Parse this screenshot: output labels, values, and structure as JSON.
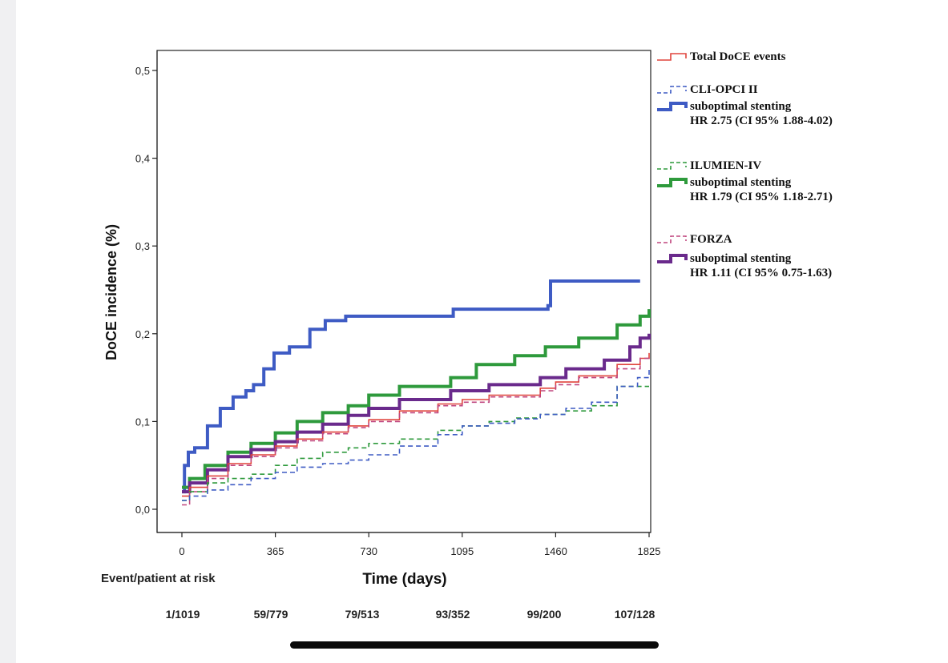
{
  "chart_data": {
    "type": "line",
    "subtype": "kaplan-meier step curves",
    "xlabel": "Time (days)",
    "ylabel": "DoCE incidence (%)",
    "xlim": [
      0,
      1825
    ],
    "ylim": [
      0,
      0.5
    ],
    "x_ticks": [
      0,
      365,
      730,
      1095,
      1460,
      1825
    ],
    "y_ticks": [
      0.0,
      0.1,
      0.2,
      0.3,
      0.4,
      0.5
    ],
    "y_tick_labels": [
      "0,0",
      "0,1",
      "0,2",
      "0,3",
      "0,4",
      "0,5"
    ],
    "grid": false,
    "legend_position": "right",
    "legend": [
      {
        "key": "total",
        "lines": [
          "Total DoCE events"
        ],
        "color": "#e0443c",
        "dashed": false,
        "thick": false
      },
      {
        "key": "cli_dashed",
        "lines": [
          "CLI-OPCI II"
        ],
        "color": "#3e5bc4",
        "dashed": true,
        "thick": false
      },
      {
        "key": "cli_solid",
        "lines": [
          "suboptimal stenting",
          "HR 2.75  (CI 95% 1.88-4.02)"
        ],
        "color": "#3e5bc4",
        "dashed": false,
        "thick": true
      },
      {
        "key": "ilu_dashed",
        "lines": [
          "ILUMIEN-IV"
        ],
        "color": "#2e9a3c",
        "dashed": true,
        "thick": false
      },
      {
        "key": "ilu_solid",
        "lines": [
          "suboptimal stenting",
          "HR 1.79 (CI 95% 1.18-2.71)"
        ],
        "color": "#2e9a3c",
        "dashed": false,
        "thick": true
      },
      {
        "key": "forza_dashed",
        "lines": [
          "FORZA"
        ],
        "color": "#c0467f",
        "dashed": true,
        "thick": false
      },
      {
        "key": "forza_solid",
        "lines": [
          "suboptimal stenting",
          "HR 1.11 (CI 95% 0.75-1.63)"
        ],
        "color": "#6a2a8c",
        "dashed": false,
        "thick": true
      }
    ],
    "series": [
      {
        "key": "cli_solid",
        "color": "#3e5bc4",
        "dashed": false,
        "width": 4,
        "x": [
          0,
          10,
          25,
          50,
          100,
          150,
          200,
          250,
          280,
          320,
          360,
          420,
          500,
          560,
          640,
          1060,
          1430,
          1440,
          1790
        ],
        "y": [
          0.02,
          0.05,
          0.065,
          0.07,
          0.095,
          0.115,
          0.128,
          0.135,
          0.142,
          0.16,
          0.178,
          0.185,
          0.205,
          0.215,
          0.22,
          0.228,
          0.232,
          0.26,
          0.26
        ]
      },
      {
        "key": "ilu_solid",
        "color": "#2e9a3c",
        "dashed": false,
        "width": 4,
        "x": [
          0,
          30,
          90,
          180,
          270,
          365,
          450,
          550,
          650,
          730,
          850,
          1050,
          1150,
          1300,
          1420,
          1550,
          1700,
          1790,
          1825
        ],
        "y": [
          0.025,
          0.035,
          0.05,
          0.065,
          0.075,
          0.087,
          0.1,
          0.11,
          0.118,
          0.13,
          0.14,
          0.15,
          0.165,
          0.175,
          0.185,
          0.195,
          0.21,
          0.22,
          0.228
        ]
      },
      {
        "key": "forza_solid",
        "color": "#6a2a8c",
        "dashed": false,
        "width": 4,
        "x": [
          0,
          30,
          100,
          180,
          270,
          365,
          450,
          550,
          650,
          730,
          850,
          1050,
          1200,
          1400,
          1500,
          1650,
          1750,
          1790,
          1825
        ],
        "y": [
          0.02,
          0.03,
          0.045,
          0.06,
          0.068,
          0.077,
          0.088,
          0.097,
          0.107,
          0.115,
          0.125,
          0.135,
          0.142,
          0.15,
          0.16,
          0.17,
          0.185,
          0.195,
          0.2
        ]
      },
      {
        "key": "total",
        "color": "#e0443c",
        "dashed": false,
        "width": 1.6,
        "x": [
          0,
          30,
          100,
          180,
          270,
          365,
          450,
          550,
          650,
          730,
          850,
          1000,
          1095,
          1200,
          1400,
          1460,
          1550,
          1700,
          1790,
          1825
        ],
        "y": [
          0.015,
          0.025,
          0.038,
          0.052,
          0.062,
          0.072,
          0.08,
          0.088,
          0.095,
          0.102,
          0.112,
          0.12,
          0.125,
          0.13,
          0.138,
          0.145,
          0.152,
          0.165,
          0.172,
          0.178
        ]
      },
      {
        "key": "forza_dashed",
        "color": "#c0467f",
        "dashed": true,
        "width": 1.6,
        "x": [
          0,
          30,
          100,
          180,
          270,
          365,
          450,
          550,
          650,
          730,
          850,
          1000,
          1095,
          1200,
          1400,
          1460,
          1550,
          1700,
          1790,
          1825
        ],
        "y": [
          0.005,
          0.02,
          0.035,
          0.05,
          0.06,
          0.07,
          0.078,
          0.086,
          0.093,
          0.1,
          0.11,
          0.118,
          0.122,
          0.128,
          0.135,
          0.142,
          0.15,
          0.16,
          0.172,
          0.175
        ]
      },
      {
        "key": "ilu_dashed",
        "color": "#2e9a3c",
        "dashed": true,
        "width": 1.6,
        "x": [
          0,
          30,
          100,
          180,
          270,
          365,
          450,
          550,
          650,
          730,
          850,
          1000,
          1095,
          1200,
          1300,
          1400,
          1500,
          1600,
          1700,
          1825
        ],
        "y": [
          0.01,
          0.02,
          0.03,
          0.035,
          0.04,
          0.05,
          0.058,
          0.065,
          0.07,
          0.075,
          0.08,
          0.09,
          0.095,
          0.1,
          0.104,
          0.108,
          0.112,
          0.118,
          0.14,
          0.14
        ]
      },
      {
        "key": "cli_dashed",
        "color": "#3e5bc4",
        "dashed": true,
        "width": 1.6,
        "x": [
          0,
          30,
          100,
          180,
          270,
          365,
          450,
          550,
          650,
          730,
          850,
          1000,
          1095,
          1200,
          1300,
          1400,
          1500,
          1600,
          1700,
          1780,
          1825
        ],
        "y": [
          0.01,
          0.015,
          0.022,
          0.028,
          0.035,
          0.042,
          0.048,
          0.052,
          0.056,
          0.062,
          0.072,
          0.085,
          0.095,
          0.098,
          0.103,
          0.108,
          0.115,
          0.122,
          0.14,
          0.15,
          0.16
        ]
      }
    ]
  },
  "at_risk": {
    "label": "Event/patient at risk",
    "values": [
      "1/1019",
      "59/779",
      "79/513",
      "93/352",
      "99/200",
      "107/128"
    ]
  }
}
